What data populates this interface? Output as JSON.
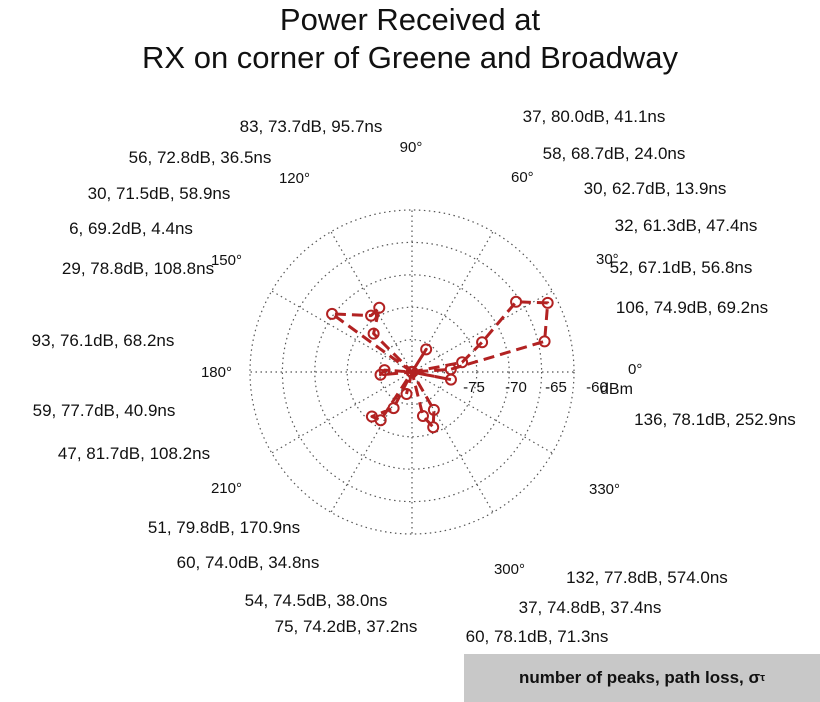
{
  "chart_data": {
    "type": "polar",
    "title_line1": "Power Received at",
    "title_line2": "RX on corner of Greene and Broadway",
    "unit_label": "dBm",
    "radial_ticks": [
      -75,
      -70,
      -65,
      -60
    ],
    "radial_range": [
      -80,
      -60
    ],
    "angle_ticks": [
      0,
      30,
      60,
      90,
      120,
      150,
      180,
      210,
      300,
      330
    ],
    "grid": true,
    "legend_text": "number of peaks, path loss, σ",
    "legend_sub": "τ",
    "series": [
      {
        "style": "dashed-line-with-circle-markers",
        "color": "#b22222",
        "points": [
          {
            "theta": 0,
            "r": -80
          },
          {
            "theta": 11,
            "r": -73.7
          },
          {
            "theta": 23,
            "r": -70.6
          },
          {
            "theta": 34,
            "r": -64.5
          },
          {
            "theta": 27,
            "r": -61.2
          },
          {
            "theta": 13,
            "r": -63.2
          },
          {
            "theta": 4,
            "r": -75.2
          },
          {
            "theta": 0,
            "r": -80
          },
          {
            "theta": 58,
            "r": -76.7
          },
          {
            "theta": 0,
            "r": -80
          },
          {
            "theta": 135,
            "r": -73.3
          },
          {
            "theta": 117,
            "r": -71.1
          },
          {
            "theta": 126,
            "r": -71.4
          },
          {
            "theta": 144,
            "r": -67.8
          },
          {
            "theta": 0,
            "r": -80
          },
          {
            "theta": 176,
            "r": -76.6
          },
          {
            "theta": 185,
            "r": -76.1
          },
          {
            "theta": 0,
            "r": -80
          },
          {
            "theta": 243,
            "r": -75.0
          },
          {
            "theta": 228,
            "r": -72.6
          },
          {
            "theta": 237,
            "r": -72.9
          },
          {
            "theta": 0,
            "r": -80
          },
          {
            "theta": 284,
            "r": -74.4
          },
          {
            "theta": 291,
            "r": -72.7
          },
          {
            "theta": 300,
            "r": -74.6
          },
          {
            "theta": 0,
            "r": -80
          },
          {
            "theta": 349,
            "r": -75.1
          },
          {
            "theta": 0,
            "r": -80
          },
          {
            "theta": 256,
            "r": -77.2
          }
        ]
      }
    ],
    "annotations": [
      "37, 80.0dB, 41.1ns",
      "58, 68.7dB, 24.0ns",
      "30, 62.7dB, 13.9ns",
      "32, 61.3dB, 47.4ns",
      "52, 67.1dB, 56.8ns",
      "106, 74.9dB, 69.2ns",
      "136, 78.1dB, 252.9ns",
      "83, 73.7dB, 95.7ns",
      "56, 72.8dB, 36.5ns",
      "30, 71.5dB, 58.9ns",
      "6, 69.2dB, 4.4ns",
      "29, 78.8dB, 108.8ns",
      "93, 76.1dB, 68.2ns",
      "59, 77.7dB, 40.9ns",
      "47, 81.7dB, 108.2ns",
      "51, 79.8dB, 170.9ns",
      "60, 74.0dB, 34.8ns",
      "54, 74.5dB, 38.0ns",
      "75, 74.2dB, 37.2ns",
      "132, 77.8dB, 574.0ns",
      "37, 74.8dB, 37.4ns",
      "60, 78.1dB, 71.3ns"
    ]
  }
}
